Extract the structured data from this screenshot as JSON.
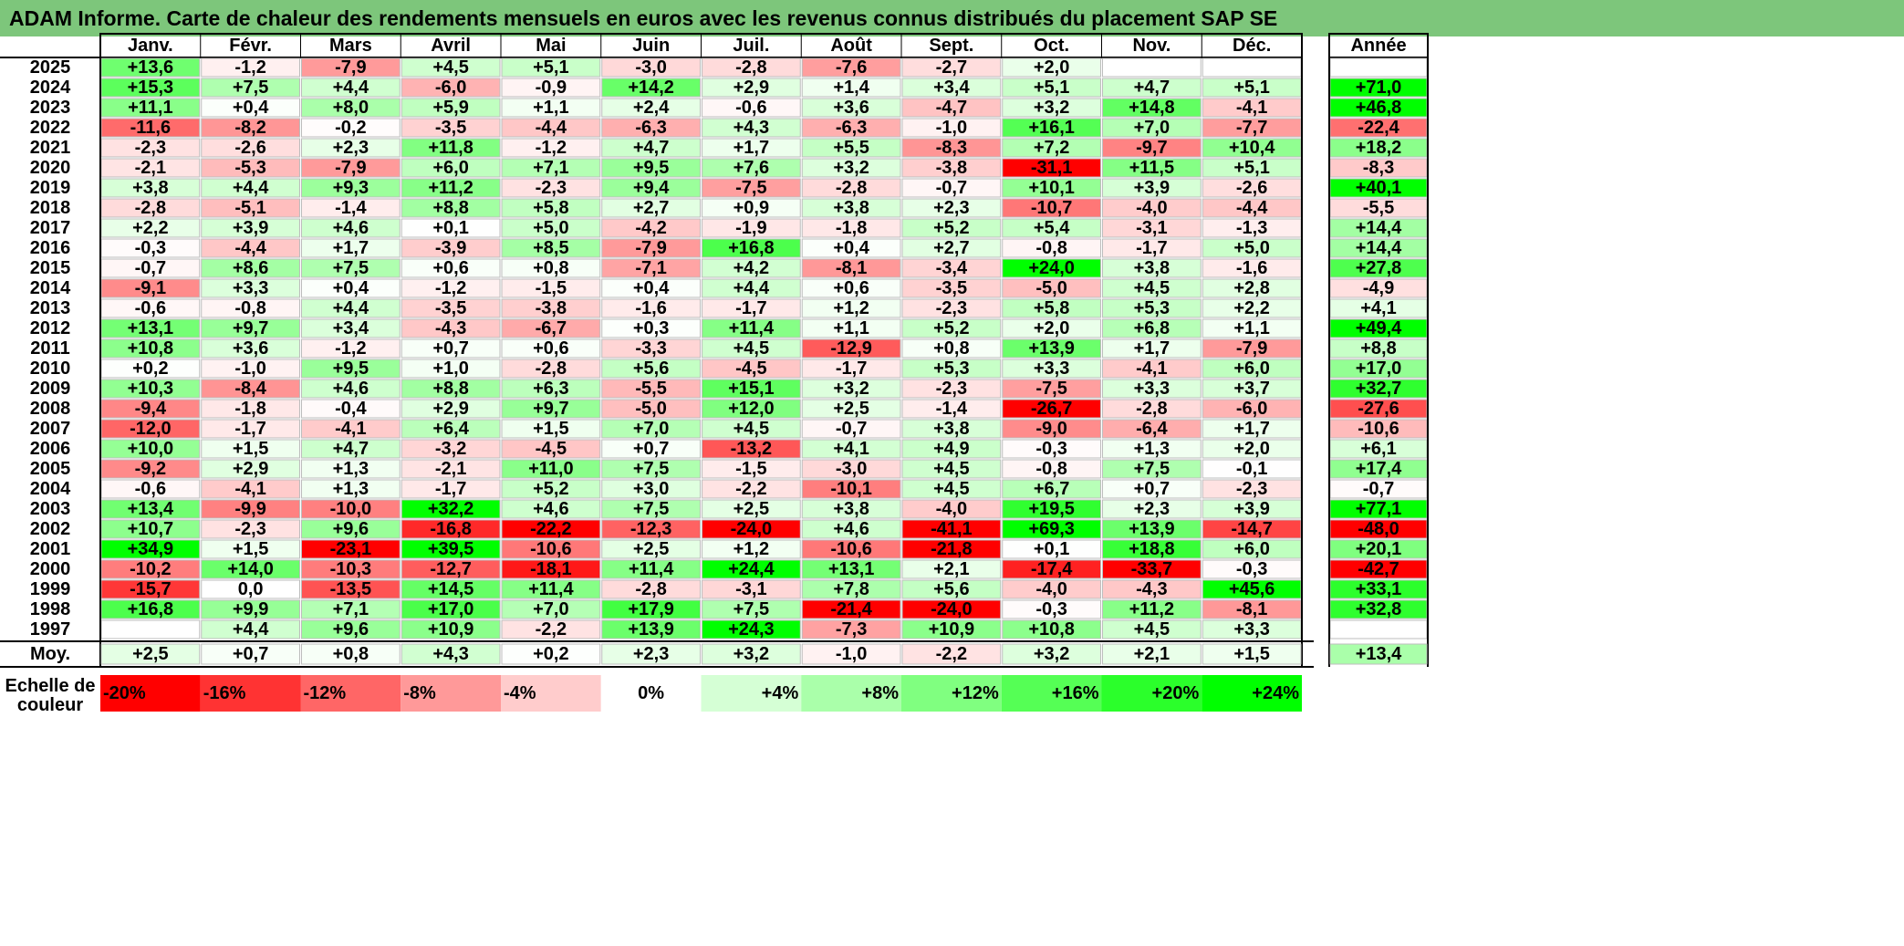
{
  "title": "ADAM Informe. Carte de chaleur des rendements mensuels en euros avec les revenus connus distribués du placement SAP SE",
  "chart_data": {
    "type": "heatmap",
    "title": "ADAM Informe. Carte de chaleur des rendements mensuels en euros avec les revenus connus distribués du placement SAP SE",
    "columns": [
      "Janv.",
      "Févr.",
      "Mars",
      "Avril",
      "Mai",
      "Juin",
      "Juil.",
      "Août",
      "Sept.",
      "Oct.",
      "Nov.",
      "Déc."
    ],
    "year_header": "Année",
    "rows": [
      {
        "year": "2025",
        "values": [
          "+13,6",
          "-1,2",
          "-7,9",
          "+4,5",
          "+5,1",
          "-3,0",
          "-2,8",
          "-7,6",
          "-2,7",
          "+2,0",
          "",
          ""
        ],
        "annual": ""
      },
      {
        "year": "2024",
        "values": [
          "+15,3",
          "+7,5",
          "+4,4",
          "-6,0",
          "-0,9",
          "+14,2",
          "+2,9",
          "+1,4",
          "+3,4",
          "+5,1",
          "+4,7",
          "+5,1"
        ],
        "annual": "+71,0"
      },
      {
        "year": "2023",
        "values": [
          "+11,1",
          "+0,4",
          "+8,0",
          "+5,9",
          "+1,1",
          "+2,4",
          "-0,6",
          "+3,6",
          "-4,7",
          "+3,2",
          "+14,8",
          "-4,1"
        ],
        "annual": "+46,8"
      },
      {
        "year": "2022",
        "values": [
          "-11,6",
          "-8,2",
          "-0,2",
          "-3,5",
          "-4,4",
          "-6,3",
          "+4,3",
          "-6,3",
          "-1,0",
          "+16,1",
          "+7,0",
          "-7,7"
        ],
        "annual": "-22,4"
      },
      {
        "year": "2021",
        "values": [
          "-2,3",
          "-2,6",
          "+2,3",
          "+11,8",
          "-1,2",
          "+4,7",
          "+1,7",
          "+5,5",
          "-8,3",
          "+7,2",
          "-9,7",
          "+10,4"
        ],
        "annual": "+18,2"
      },
      {
        "year": "2020",
        "values": [
          "-2,1",
          "-5,3",
          "-7,9",
          "+6,0",
          "+7,1",
          "+9,5",
          "+7,6",
          "+3,2",
          "-3,8",
          "-31,1",
          "+11,5",
          "+5,1"
        ],
        "annual": "-8,3"
      },
      {
        "year": "2019",
        "values": [
          "+3,8",
          "+4,4",
          "+9,3",
          "+11,2",
          "-2,3",
          "+9,4",
          "-7,5",
          "-2,8",
          "-0,7",
          "+10,1",
          "+3,9",
          "-2,6"
        ],
        "annual": "+40,1"
      },
      {
        "year": "2018",
        "values": [
          "-2,8",
          "-5,1",
          "-1,4",
          "+8,8",
          "+5,8",
          "+2,7",
          "+0,9",
          "+3,8",
          "+2,3",
          "-10,7",
          "-4,0",
          "-4,4"
        ],
        "annual": "-5,5"
      },
      {
        "year": "2017",
        "values": [
          "+2,2",
          "+3,9",
          "+4,6",
          "+0,1",
          "+5,0",
          "-4,2",
          "-1,9",
          "-1,8",
          "+5,2",
          "+5,4",
          "-3,1",
          "-1,3"
        ],
        "annual": "+14,4"
      },
      {
        "year": "2016",
        "values": [
          "-0,3",
          "-4,4",
          "+1,7",
          "-3,9",
          "+8,5",
          "-7,9",
          "+16,8",
          "+0,4",
          "+2,7",
          "-0,8",
          "-1,7",
          "+5,0"
        ],
        "annual": "+14,4"
      },
      {
        "year": "2015",
        "values": [
          "-0,7",
          "+8,6",
          "+7,5",
          "+0,6",
          "+0,8",
          "-7,1",
          "+4,2",
          "-8,1",
          "-3,4",
          "+24,0",
          "+3,8",
          "-1,6"
        ],
        "annual": "+27,8"
      },
      {
        "year": "2014",
        "values": [
          "-9,1",
          "+3,3",
          "+0,4",
          "-1,2",
          "-1,5",
          "+0,4",
          "+4,4",
          "+0,6",
          "-3,5",
          "-5,0",
          "+4,5",
          "+2,8"
        ],
        "annual": "-4,9"
      },
      {
        "year": "2013",
        "values": [
          "-0,6",
          "-0,8",
          "+4,4",
          "-3,5",
          "-3,8",
          "-1,6",
          "-1,7",
          "+1,2",
          "-2,3",
          "+5,8",
          "+5,3",
          "+2,2"
        ],
        "annual": "+4,1"
      },
      {
        "year": "2012",
        "values": [
          "+13,1",
          "+9,7",
          "+3,4",
          "-4,3",
          "-6,7",
          "+0,3",
          "+11,4",
          "+1,1",
          "+5,2",
          "+2,0",
          "+6,8",
          "+1,1"
        ],
        "annual": "+49,4"
      },
      {
        "year": "2011",
        "values": [
          "+10,8",
          "+3,6",
          "-1,2",
          "+0,7",
          "+0,6",
          "-3,3",
          "+4,5",
          "-12,9",
          "+0,8",
          "+13,9",
          "+1,7",
          "-7,9"
        ],
        "annual": "+8,8"
      },
      {
        "year": "2010",
        "values": [
          "+0,2",
          "-1,0",
          "+9,5",
          "+1,0",
          "-2,8",
          "+5,6",
          "-4,5",
          "-1,7",
          "+5,3",
          "+3,3",
          "-4,1",
          "+6,0"
        ],
        "annual": "+17,0"
      },
      {
        "year": "2009",
        "values": [
          "+10,3",
          "-8,4",
          "+4,6",
          "+8,8",
          "+6,3",
          "-5,5",
          "+15,1",
          "+3,2",
          "-2,3",
          "-7,5",
          "+3,3",
          "+3,7"
        ],
        "annual": "+32,7"
      },
      {
        "year": "2008",
        "values": [
          "-9,4",
          "-1,8",
          "-0,4",
          "+2,9",
          "+9,7",
          "-5,0",
          "+12,0",
          "+2,5",
          "-1,4",
          "-26,7",
          "-2,8",
          "-6,0"
        ],
        "annual": "-27,6"
      },
      {
        "year": "2007",
        "values": [
          "-12,0",
          "-1,7",
          "-4,1",
          "+6,4",
          "+1,5",
          "+7,0",
          "+4,5",
          "-0,7",
          "+3,8",
          "-9,0",
          "-6,4",
          "+1,7"
        ],
        "annual": "-10,6"
      },
      {
        "year": "2006",
        "values": [
          "+10,0",
          "+1,5",
          "+4,7",
          "-3,2",
          "-4,5",
          "+0,7",
          "-13,2",
          "+4,1",
          "+4,9",
          "-0,3",
          "+1,3",
          "+2,0"
        ],
        "annual": "+6,1"
      },
      {
        "year": "2005",
        "values": [
          "-9,2",
          "+2,9",
          "+1,3",
          "-2,1",
          "+11,0",
          "+7,5",
          "-1,5",
          "-3,0",
          "+4,5",
          "-0,8",
          "+7,5",
          "-0,1"
        ],
        "annual": "+17,4"
      },
      {
        "year": "2004",
        "values": [
          "-0,6",
          "-4,1",
          "+1,3",
          "-1,7",
          "+5,2",
          "+3,0",
          "-2,2",
          "-10,1",
          "+4,5",
          "+6,7",
          "+0,7",
          "-2,3"
        ],
        "annual": "-0,7"
      },
      {
        "year": "2003",
        "values": [
          "+13,4",
          "-9,9",
          "-10,0",
          "+32,2",
          "+4,6",
          "+7,5",
          "+2,5",
          "+3,8",
          "-4,0",
          "+19,5",
          "+2,3",
          "+3,9"
        ],
        "annual": "+77,1"
      },
      {
        "year": "2002",
        "values": [
          "+10,7",
          "-2,3",
          "+9,6",
          "-16,8",
          "-22,2",
          "-12,3",
          "-24,0",
          "+4,6",
          "-41,1",
          "+69,3",
          "+13,9",
          "-14,7"
        ],
        "annual": "-48,0"
      },
      {
        "year": "2001",
        "values": [
          "+34,9",
          "+1,5",
          "-23,1",
          "+39,5",
          "-10,6",
          "+2,5",
          "+1,2",
          "-10,6",
          "-21,8",
          "+0,1",
          "+18,8",
          "+6,0"
        ],
        "annual": "+20,1"
      },
      {
        "year": "2000",
        "values": [
          "-10,2",
          "+14,0",
          "-10,3",
          "-12,7",
          "-18,1",
          "+11,4",
          "+24,4",
          "+13,1",
          "+2,1",
          "-17,4",
          "-33,7",
          "-0,3"
        ],
        "annual": "-42,7"
      },
      {
        "year": "1999",
        "values": [
          "-15,7",
          "0,0",
          "-13,5",
          "+14,5",
          "+11,4",
          "-2,8",
          "-3,1",
          "+7,8",
          "+5,6",
          "-4,0",
          "-4,3",
          "+45,6"
        ],
        "annual": "+33,1"
      },
      {
        "year": "1998",
        "values": [
          "+16,8",
          "+9,9",
          "+7,1",
          "+17,0",
          "+7,0",
          "+17,9",
          "+7,5",
          "-21,4",
          "-24,0",
          "-0,3",
          "+11,2",
          "-8,1"
        ],
        "annual": "+32,8"
      },
      {
        "year": "1997",
        "values": [
          "",
          "+4,4",
          "+9,6",
          "+10,9",
          "-2,2",
          "+13,9",
          "+24,3",
          "-7,3",
          "+10,9",
          "+10,8",
          "+4,5",
          "+3,3"
        ],
        "annual": ""
      }
    ],
    "average": {
      "label": "Moy.",
      "values": [
        "+2,5",
        "+0,7",
        "+0,8",
        "+4,3",
        "+0,2",
        "+2,3",
        "+3,2",
        "-1,0",
        "-2,2",
        "+3,2",
        "+2,1",
        "+1,5"
      ],
      "annual": "+13,4"
    },
    "scale": {
      "label_line1": "Echelle de",
      "label_line2": "couleur",
      "stops": [
        {
          "label": "-20%",
          "value": -20
        },
        {
          "label": "-16%",
          "value": -16
        },
        {
          "label": "-12%",
          "value": -12
        },
        {
          "label": "-8%",
          "value": -8
        },
        {
          "label": "-4%",
          "value": -4
        },
        {
          "label": "0%",
          "value": 0
        },
        {
          "label": "+4%",
          "value": 4
        },
        {
          "label": "+8%",
          "value": 8
        },
        {
          "label": "+12%",
          "value": 12
        },
        {
          "label": "+16%",
          "value": 16
        },
        {
          "label": "+20%",
          "value": 20
        },
        {
          "label": "+24%",
          "value": 24
        }
      ]
    },
    "colors": {
      "negative_max": "#ff0000",
      "neutral": "#ffffff",
      "positive_max": "#00ff00",
      "title_bg": "#7dc67b"
    }
  }
}
